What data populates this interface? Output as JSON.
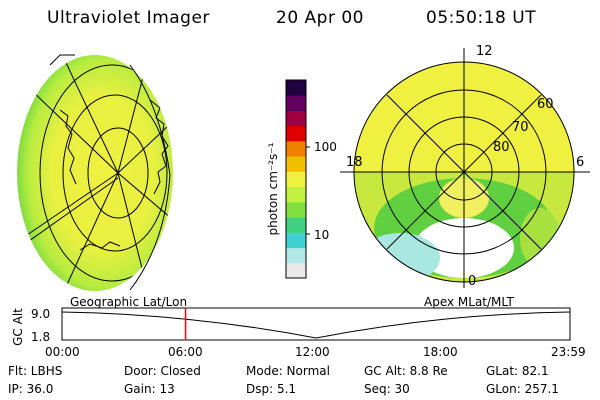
{
  "header": {
    "instrument": "Ultraviolet Imager",
    "date": "20 Apr 00",
    "time": "05:50:18 UT"
  },
  "colorbar": {
    "label": "photon cm⁻²s⁻¹",
    "ticks": [
      "100",
      "10"
    ],
    "scale": "log",
    "colors": [
      "#e8e8e8",
      "#b0e8e8",
      "#40d0d0",
      "#40d080",
      "#80e040",
      "#c0f040",
      "#f0f040",
      "#f0c000",
      "#f08000",
      "#e00000",
      "#a00040",
      "#600060",
      "#200040"
    ]
  },
  "geo_view": {
    "label": "Geographic Lat/Lon"
  },
  "polar_view": {
    "label": "Apex MLat/MLT",
    "mlt_labels": [
      "12",
      "18",
      "6",
      "0"
    ],
    "lat_labels": [
      "60",
      "70",
      "80"
    ]
  },
  "altitude_plot": {
    "axis_title": "GC Alt",
    "y_ticks": [
      "9.0",
      "1.8"
    ],
    "x_ticks": [
      "00:00",
      "06:00",
      "12:00",
      "18:00",
      "23:59"
    ],
    "marker_time": "05:50",
    "marker_color": "#ff0000"
  },
  "footer": {
    "row1": [
      "Flt: LBHS",
      "Door: Closed",
      "Mode: Normal",
      "GC Alt: 8.8 Re",
      "GLat:  82.1"
    ],
    "row2": [
      "IP: 36.0",
      "Gain: 13",
      "Dsp:     5.1",
      "Seq: 30",
      "GLon: 257.1"
    ]
  }
}
